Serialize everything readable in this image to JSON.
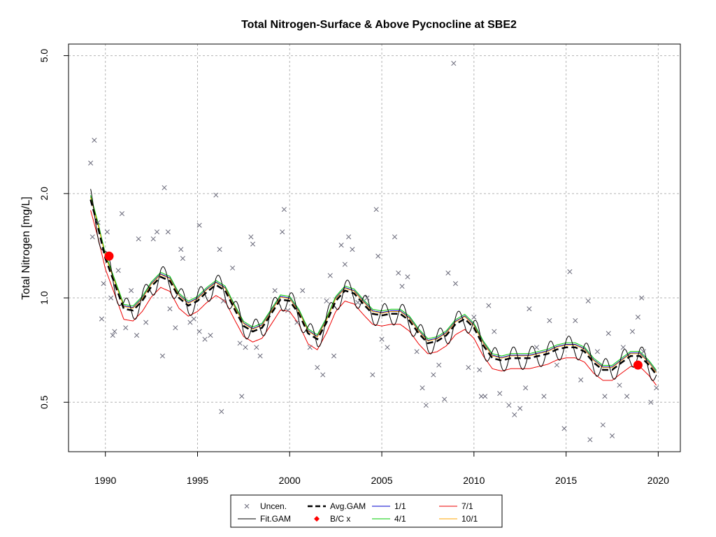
{
  "chart_data": {
    "type": "scatter",
    "title": "Total Nitrogen-Surface & Above Pycnocline at SBE2",
    "xlabel": "",
    "ylabel": "Total Nitrogen [mg/L]",
    "y_scale": "log",
    "xlim": [
      1988,
      2021.2
    ],
    "ylim": [
      0.36,
      5.4
    ],
    "x_ticks": [
      1990,
      1995,
      2000,
      2005,
      2010,
      2015,
      2020
    ],
    "y_ticks": [
      0.5,
      1.0,
      2.0,
      5.0
    ],
    "y_tick_labels": [
      "0.5",
      "1.0",
      "2.0",
      "5.0"
    ],
    "grid": true,
    "legend_position": "bottom-center",
    "colors": {
      "uncen": "#6a6a7a",
      "fit": "#000000",
      "avg": "#000000",
      "bc": "#ff0000",
      "jan1": "#0000cc",
      "apr1": "#00cc00",
      "jul1": "#ee0000",
      "oct1": "#ffa500",
      "grid": "#b4b4b4"
    },
    "legend": [
      {
        "label": "Uncen.",
        "key": "uncen",
        "symbol": "x"
      },
      {
        "label": "Avg.GAM",
        "key": "avg",
        "symbol": "dashed"
      },
      {
        "label": "1/1",
        "key": "jan1",
        "symbol": "line"
      },
      {
        "label": "7/1",
        "key": "jul1",
        "symbol": "line"
      },
      {
        "label": "Fit.GAM",
        "key": "fit",
        "symbol": "line"
      },
      {
        "label": "B/C x",
        "key": "bc",
        "symbol": "diamond"
      },
      {
        "label": "4/1",
        "key": "apr1",
        "symbol": "line"
      },
      {
        "label": "10/1",
        "key": "oct1",
        "symbol": "line"
      }
    ],
    "avg_gam": {
      "x": [
        1989.2,
        1989.6,
        1990.0,
        1990.5,
        1991.0,
        1991.5,
        1992.0,
        1992.5,
        1993.0,
        1993.5,
        1994.0,
        1994.5,
        1995.0,
        1995.5,
        1996.0,
        1996.5,
        1997.0,
        1997.5,
        1998.0,
        1998.5,
        1999.0,
        1999.5,
        2000.0,
        2000.5,
        2001.0,
        2001.5,
        2002.0,
        2002.5,
        2003.0,
        2003.5,
        2004.0,
        2004.5,
        2005.0,
        2005.5,
        2006.0,
        2006.5,
        2007.0,
        2007.5,
        2008.0,
        2008.5,
        2009.0,
        2009.5,
        2010.0,
        2010.5,
        2011.0,
        2011.5,
        2012.0,
        2012.5,
        2013.0,
        2013.5,
        2014.0,
        2014.5,
        2015.0,
        2015.5,
        2016.0,
        2016.5,
        2017.0,
        2017.5,
        2018.0,
        2018.5,
        2019.0,
        2019.5,
        2019.9
      ],
      "y": [
        1.92,
        1.6,
        1.3,
        1.1,
        0.93,
        0.92,
        0.98,
        1.08,
        1.15,
        1.12,
        1.0,
        0.95,
        0.98,
        1.04,
        1.09,
        1.05,
        0.93,
        0.83,
        0.8,
        0.82,
        0.9,
        0.99,
        0.98,
        0.9,
        0.79,
        0.76,
        0.85,
        0.98,
        1.05,
        1.03,
        0.96,
        0.9,
        0.89,
        0.9,
        0.9,
        0.86,
        0.79,
        0.74,
        0.75,
        0.78,
        0.84,
        0.87,
        0.82,
        0.73,
        0.67,
        0.66,
        0.67,
        0.67,
        0.67,
        0.68,
        0.69,
        0.71,
        0.72,
        0.72,
        0.7,
        0.65,
        0.62,
        0.62,
        0.65,
        0.68,
        0.68,
        0.64,
        0.6
      ]
    },
    "seasonal_offsets": {
      "jan1": 0.02,
      "apr1": 0.03,
      "jul1": -0.07,
      "oct1": 0.015
    },
    "fit_gam_amplitude": 0.075,
    "bc_points": [
      {
        "x": 1990.2,
        "y": 1.32
      },
      {
        "x": 2018.9,
        "y": 0.64
      }
    ],
    "uncen_points": [
      {
        "x": 1989.2,
        "y": 2.45
      },
      {
        "x": 1989.4,
        "y": 2.85
      },
      {
        "x": 1989.3,
        "y": 1.5
      },
      {
        "x": 1989.6,
        "y": 1.65
      },
      {
        "x": 1989.8,
        "y": 0.87
      },
      {
        "x": 1989.9,
        "y": 1.1
      },
      {
        "x": 1990.1,
        "y": 1.55
      },
      {
        "x": 1990.3,
        "y": 1.0
      },
      {
        "x": 1990.4,
        "y": 0.78
      },
      {
        "x": 1990.5,
        "y": 0.8
      },
      {
        "x": 1990.7,
        "y": 1.2
      },
      {
        "x": 1990.9,
        "y": 1.75
      },
      {
        "x": 1991.1,
        "y": 0.82
      },
      {
        "x": 1991.4,
        "y": 1.05
      },
      {
        "x": 1991.7,
        "y": 0.78
      },
      {
        "x": 1991.8,
        "y": 1.48
      },
      {
        "x": 1992.2,
        "y": 0.85
      },
      {
        "x": 1992.6,
        "y": 1.48
      },
      {
        "x": 1992.8,
        "y": 1.55
      },
      {
        "x": 1993.1,
        "y": 0.68
      },
      {
        "x": 1993.2,
        "y": 2.08
      },
      {
        "x": 1993.4,
        "y": 1.55
      },
      {
        "x": 1993.5,
        "y": 0.93
      },
      {
        "x": 1993.8,
        "y": 0.82
      },
      {
        "x": 1994.1,
        "y": 1.38
      },
      {
        "x": 1994.2,
        "y": 1.3
      },
      {
        "x": 1994.6,
        "y": 0.85
      },
      {
        "x": 1994.8,
        "y": 0.87
      },
      {
        "x": 1995.1,
        "y": 0.8
      },
      {
        "x": 1995.1,
        "y": 1.62
      },
      {
        "x": 1995.4,
        "y": 0.76
      },
      {
        "x": 1995.7,
        "y": 0.78
      },
      {
        "x": 1996.0,
        "y": 1.98
      },
      {
        "x": 1996.2,
        "y": 1.38
      },
      {
        "x": 1996.3,
        "y": 0.47
      },
      {
        "x": 1996.4,
        "y": 0.98
      },
      {
        "x": 1996.9,
        "y": 1.22
      },
      {
        "x": 1997.3,
        "y": 0.74
      },
      {
        "x": 1997.4,
        "y": 0.52
      },
      {
        "x": 1997.6,
        "y": 0.72
      },
      {
        "x": 1997.9,
        "y": 1.5
      },
      {
        "x": 1998.0,
        "y": 1.43
      },
      {
        "x": 1998.2,
        "y": 0.72
      },
      {
        "x": 1998.4,
        "y": 0.68
      },
      {
        "x": 1999.2,
        "y": 1.05
      },
      {
        "x": 1999.6,
        "y": 1.55
      },
      {
        "x": 1999.7,
        "y": 1.8
      },
      {
        "x": 1999.9,
        "y": 0.92
      },
      {
        "x": 2000.4,
        "y": 0.85
      },
      {
        "x": 2000.7,
        "y": 1.05
      },
      {
        "x": 2001.1,
        "y": 0.72
      },
      {
        "x": 2001.5,
        "y": 0.63
      },
      {
        "x": 2001.8,
        "y": 0.6
      },
      {
        "x": 2002.0,
        "y": 0.98
      },
      {
        "x": 2002.2,
        "y": 1.16
      },
      {
        "x": 2002.4,
        "y": 0.68
      },
      {
        "x": 2002.8,
        "y": 1.42
      },
      {
        "x": 2003.0,
        "y": 1.25
      },
      {
        "x": 2003.2,
        "y": 1.5
      },
      {
        "x": 2003.4,
        "y": 1.38
      },
      {
        "x": 2003.7,
        "y": 0.97
      },
      {
        "x": 2004.2,
        "y": 1.0
      },
      {
        "x": 2004.5,
        "y": 0.6
      },
      {
        "x": 2004.7,
        "y": 1.8
      },
      {
        "x": 2004.8,
        "y": 1.32
      },
      {
        "x": 2005.0,
        "y": 0.76
      },
      {
        "x": 2005.3,
        "y": 0.72
      },
      {
        "x": 2005.7,
        "y": 1.5
      },
      {
        "x": 2005.9,
        "y": 1.18
      },
      {
        "x": 2006.1,
        "y": 1.08
      },
      {
        "x": 2006.4,
        "y": 1.15
      },
      {
        "x": 2006.9,
        "y": 0.7
      },
      {
        "x": 2007.2,
        "y": 0.55
      },
      {
        "x": 2007.4,
        "y": 0.49
      },
      {
        "x": 2007.8,
        "y": 0.6
      },
      {
        "x": 2008.1,
        "y": 0.64
      },
      {
        "x": 2008.4,
        "y": 0.51
      },
      {
        "x": 2008.6,
        "y": 1.18
      },
      {
        "x": 2008.9,
        "y": 4.75
      },
      {
        "x": 2009.0,
        "y": 1.1
      },
      {
        "x": 2009.7,
        "y": 0.63
      },
      {
        "x": 2010.0,
        "y": 0.88
      },
      {
        "x": 2010.3,
        "y": 0.62
      },
      {
        "x": 2010.4,
        "y": 0.52
      },
      {
        "x": 2010.6,
        "y": 0.52
      },
      {
        "x": 2010.8,
        "y": 0.95
      },
      {
        "x": 2011.1,
        "y": 0.8
      },
      {
        "x": 2011.4,
        "y": 0.53
      },
      {
        "x": 2011.9,
        "y": 0.49
      },
      {
        "x": 2012.2,
        "y": 0.46
      },
      {
        "x": 2012.5,
        "y": 0.48
      },
      {
        "x": 2012.8,
        "y": 0.55
      },
      {
        "x": 2013.0,
        "y": 0.93
      },
      {
        "x": 2013.4,
        "y": 0.72
      },
      {
        "x": 2013.8,
        "y": 0.52
      },
      {
        "x": 2014.1,
        "y": 0.86
      },
      {
        "x": 2014.5,
        "y": 0.64
      },
      {
        "x": 2014.9,
        "y": 0.42
      },
      {
        "x": 2015.2,
        "y": 1.19
      },
      {
        "x": 2015.5,
        "y": 0.86
      },
      {
        "x": 2015.8,
        "y": 0.58
      },
      {
        "x": 2016.2,
        "y": 0.98
      },
      {
        "x": 2016.3,
        "y": 0.39
      },
      {
        "x": 2016.7,
        "y": 0.7
      },
      {
        "x": 2017.0,
        "y": 0.43
      },
      {
        "x": 2017.1,
        "y": 0.52
      },
      {
        "x": 2017.3,
        "y": 0.79
      },
      {
        "x": 2017.5,
        "y": 0.4
      },
      {
        "x": 2017.9,
        "y": 0.56
      },
      {
        "x": 2018.1,
        "y": 0.72
      },
      {
        "x": 2018.3,
        "y": 0.52
      },
      {
        "x": 2018.6,
        "y": 0.8
      },
      {
        "x": 2018.9,
        "y": 0.88
      },
      {
        "x": 2019.1,
        "y": 1.0
      },
      {
        "x": 2019.2,
        "y": 0.7
      },
      {
        "x": 2019.6,
        "y": 0.5
      },
      {
        "x": 2019.9,
        "y": 0.55
      }
    ]
  }
}
